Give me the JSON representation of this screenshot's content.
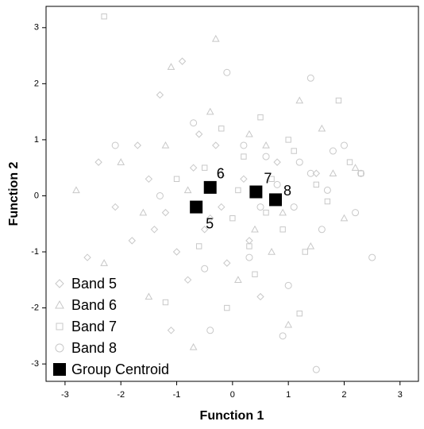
{
  "chart_data": {
    "type": "scatter",
    "xlabel": "Function 1",
    "ylabel": "Function 2",
    "xlim": [
      -3.34,
      3.33
    ],
    "ylim": [
      -3.31,
      3.38
    ],
    "xticks": [
      -3,
      -2,
      -1,
      0,
      1,
      2,
      3
    ],
    "yticks": [
      -3,
      -2,
      -1,
      0,
      1,
      2,
      3
    ],
    "legend": "lower left",
    "series": [
      {
        "name": "Band 5",
        "marker": "diamond",
        "color": "#c8c8c8",
        "x": [
          -2.4,
          -2.1,
          -1.8,
          -1.5,
          -1.3,
          -1.0,
          -0.9,
          -0.7,
          -0.5,
          -0.3,
          -0.1,
          0.2,
          0.5,
          -1.2,
          -0.8,
          -0.6,
          -2.6,
          -1.7,
          -0.2,
          0.8,
          1.5,
          -1.1,
          0.3,
          -0.4,
          -1.4
        ],
        "y": [
          0.6,
          -0.2,
          -0.8,
          0.3,
          1.8,
          -1.0,
          2.4,
          0.5,
          -0.6,
          0.9,
          -1.2,
          0.3,
          -1.8,
          -0.3,
          -1.5,
          1.1,
          -1.1,
          0.9,
          -0.2,
          0.6,
          0.4,
          -2.4,
          -0.8,
          -0.4,
          -0.6
        ]
      },
      {
        "name": "Band 6",
        "marker": "triangle",
        "color": "#c8c8c8",
        "x": [
          -2.3,
          -2.0,
          -1.6,
          -1.2,
          -1.1,
          -0.7,
          -0.4,
          -0.2,
          0.1,
          0.3,
          0.6,
          0.9,
          1.2,
          1.4,
          1.8,
          2.0,
          2.2,
          -0.3,
          0.4,
          -1.5,
          1.0,
          -0.8,
          0.7,
          1.6,
          -2.8
        ],
        "y": [
          -1.2,
          0.6,
          -0.3,
          0.9,
          2.3,
          -2.7,
          1.5,
          0.4,
          -1.5,
          1.1,
          0.9,
          -0.3,
          1.7,
          -0.9,
          0.4,
          -0.4,
          0.5,
          2.8,
          -0.6,
          -1.8,
          -2.3,
          0.1,
          -1.0,
          1.2,
          0.1
        ]
      },
      {
        "name": "Band 7",
        "marker": "square",
        "color": "#c8c8c8",
        "x": [
          -2.3,
          -1.2,
          -0.5,
          -0.2,
          0.1,
          0.3,
          0.5,
          0.7,
          0.9,
          1.1,
          1.3,
          1.5,
          1.9,
          2.1,
          2.3,
          0.0,
          -0.1,
          1.2,
          0.6,
          1.7,
          0.2,
          -1.0,
          1.0,
          0.4,
          -0.6
        ],
        "y": [
          3.2,
          -1.9,
          0.5,
          1.2,
          0.1,
          -0.9,
          1.4,
          0.3,
          -0.6,
          0.8,
          -1.0,
          0.2,
          1.7,
          0.6,
          0.4,
          -0.4,
          -2.0,
          -2.1,
          -0.3,
          -0.1,
          0.7,
          0.3,
          1.0,
          -1.4,
          -0.9
        ]
      },
      {
        "name": "Band 8",
        "marker": "circle",
        "color": "#c8c8c8",
        "x": [
          -2.1,
          -1.3,
          -0.4,
          -0.1,
          0.2,
          0.5,
          0.8,
          1.0,
          1.2,
          1.4,
          1.6,
          1.8,
          2.0,
          2.2,
          2.5,
          1.4,
          0.9,
          1.5,
          0.3,
          -0.7,
          1.1,
          2.3,
          0.6,
          -0.5,
          1.7
        ],
        "y": [
          0.9,
          0.0,
          -2.4,
          2.2,
          0.9,
          -0.2,
          0.2,
          -1.6,
          0.6,
          0.4,
          -0.6,
          0.8,
          0.9,
          -0.3,
          -1.1,
          2.1,
          -2.5,
          -3.1,
          -1.1,
          1.3,
          -0.2,
          0.4,
          0.7,
          -1.3,
          0.1
        ]
      },
      {
        "name": "Group Centroid",
        "marker": "filled-square",
        "color": "#000000",
        "x": [
          -0.65,
          -0.4,
          0.42,
          0.77
        ],
        "y": [
          -0.2,
          0.15,
          0.07,
          -0.07
        ],
        "labels": [
          "5",
          "6",
          "7",
          "8"
        ]
      }
    ]
  }
}
